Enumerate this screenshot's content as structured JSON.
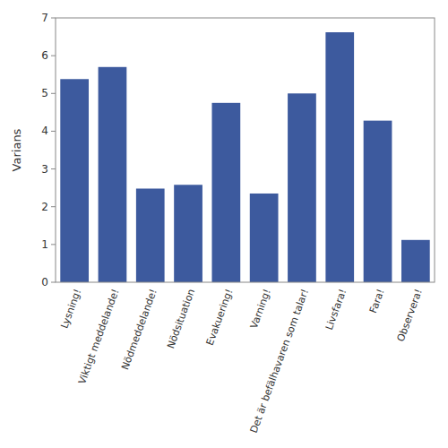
{
  "chart_data": {
    "type": "bar",
    "categories": [
      "Lysning!",
      "Viktigt meddelande!",
      "Nödmeddelande!",
      "Nödsituation",
      "Evakuering!",
      "Varning!",
      "Det är befälhavaren som talar!",
      "Livsfara!",
      "Fara!",
      "Observera!"
    ],
    "values": [
      5.38,
      5.7,
      2.48,
      2.58,
      4.75,
      2.35,
      5.0,
      6.62,
      4.28,
      1.12
    ],
    "color": "#3d5a9e",
    "ylabel": "Varians",
    "ylim": [
      0,
      7
    ],
    "yticks": [
      0,
      1,
      2,
      3,
      4,
      5,
      6,
      7
    ],
    "grid": false
  }
}
